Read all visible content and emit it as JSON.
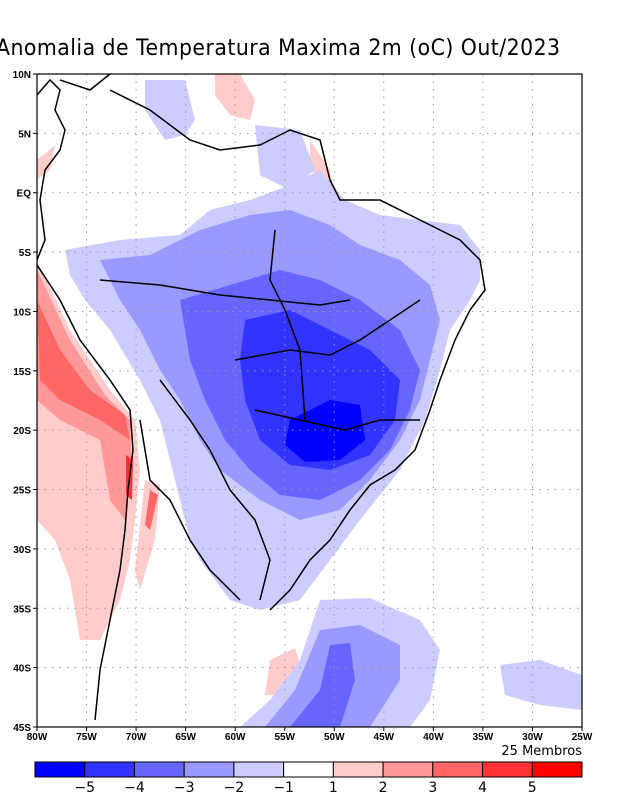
{
  "title": "Anomalia de Temperatura Maxima 2m (oC) Out/2023",
  "members_label": "25 Membros",
  "lat_ticks": [
    "10N",
    "5N",
    "EQ",
    "5S",
    "10S",
    "15S",
    "20S",
    "25S",
    "30S",
    "35S",
    "40S",
    "45S"
  ],
  "lon_ticks": [
    "80W",
    "75W",
    "70W",
    "65W",
    "60W",
    "55W",
    "50W",
    "45W",
    "40W",
    "35W",
    "30W",
    "25W"
  ],
  "legend": {
    "colors": [
      "#0000ff",
      "#3333ff",
      "#6666ff",
      "#9999ff",
      "#ccccff",
      "#ffffff",
      "#ffcccc",
      "#ff9999",
      "#ff6666",
      "#ff3333",
      "#ff0000"
    ],
    "labels": [
      "−5",
      "−4",
      "−3",
      "−2",
      "−1",
      "1",
      "2",
      "3",
      "4",
      "5"
    ]
  },
  "map": {
    "lat_range": [
      -45,
      10
    ],
    "lon_range": [
      -80,
      -25
    ],
    "grid": "dotted"
  }
}
